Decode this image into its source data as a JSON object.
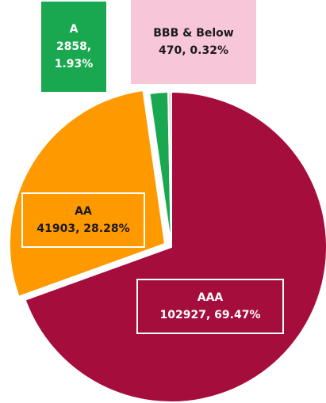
{
  "chart_data": {
    "type": "pie",
    "categories": [
      "AAA",
      "AA",
      "A",
      "BBB & Below"
    ],
    "values": [
      102927,
      41903,
      2858,
      470
    ],
    "value_labels": [
      "102927, 69.47%",
      "41903, 28.28%",
      "2858, 1.93%",
      "470, 0.32%"
    ],
    "colors": [
      "#a50d3c",
      "#ff9900",
      "#19a84f",
      "#f7c6d9"
    ],
    "label_text_colors": [
      "#ffffff",
      "#1a1a1a",
      "#ffffff",
      "#1a1a1a"
    ]
  }
}
